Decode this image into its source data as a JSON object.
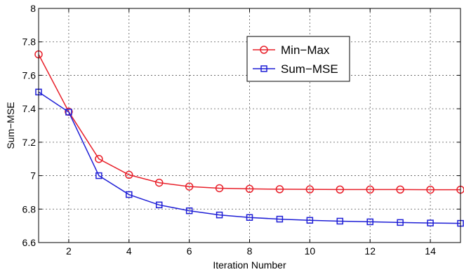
{
  "chart_data": {
    "type": "line",
    "title": "",
    "xlabel": "Iteration Number",
    "ylabel": "Sum−MSE",
    "xlim": [
      1,
      15
    ],
    "ylim": [
      6.6,
      8
    ],
    "x_ticks": [
      2,
      4,
      6,
      8,
      10,
      12,
      14
    ],
    "x_tick_labels": [
      "2",
      "4",
      "6",
      "8",
      "10",
      "12",
      "14"
    ],
    "y_ticks": [
      6.6,
      6.8,
      7,
      7.2,
      7.4,
      7.6,
      7.8,
      8
    ],
    "y_tick_labels": [
      "6.6",
      "6.8",
      "7",
      "7.2",
      "7.4",
      "7.6",
      "7.8",
      "8"
    ],
    "grid": true,
    "grid_style": "dotted",
    "legend_position": "top-right",
    "x": [
      1,
      2,
      3,
      4,
      5,
      6,
      7,
      8,
      9,
      10,
      11,
      12,
      13,
      14,
      15
    ],
    "series": [
      {
        "name": "Min−Max",
        "color": "#e8202a",
        "marker": "circle",
        "values": [
          7.725,
          7.382,
          7.1,
          7.005,
          6.958,
          6.935,
          6.925,
          6.921,
          6.919,
          6.918,
          6.917,
          6.917,
          6.917,
          6.916,
          6.916
        ]
      },
      {
        "name": "Sum−MSE",
        "color": "#1f1fd6",
        "marker": "square",
        "values": [
          7.5,
          7.38,
          7.0,
          6.887,
          6.825,
          6.79,
          6.765,
          6.75,
          6.74,
          6.733,
          6.728,
          6.724,
          6.72,
          6.717,
          6.715
        ]
      }
    ]
  }
}
